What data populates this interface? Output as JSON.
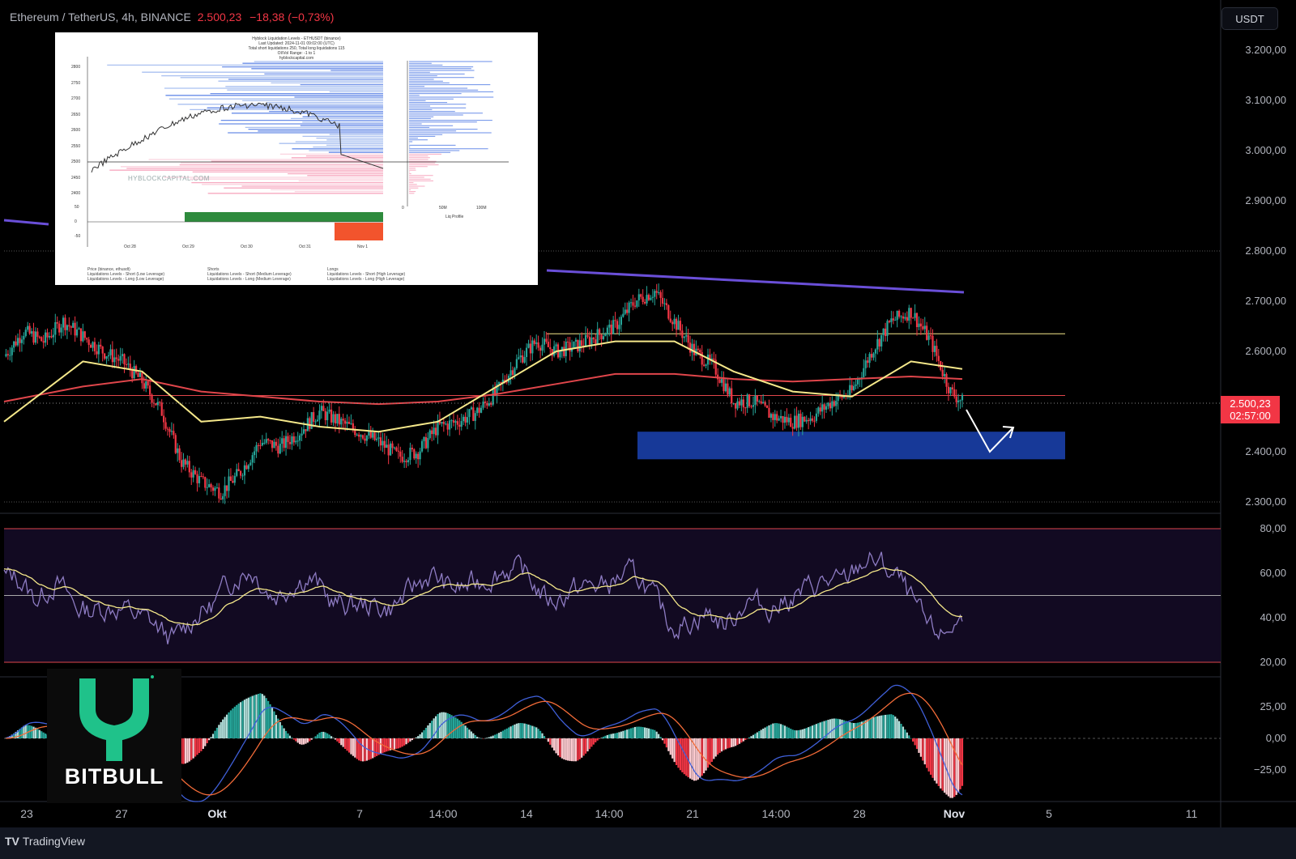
{
  "header": {
    "symbol_label": "Ethereum / TetherUS, 4h, BINANCE",
    "price": "2.500,23",
    "change": "−18,38 (−0,73%)"
  },
  "currency_button": "USDT",
  "price_axis": [
    "3.200,00",
    "3.100,00",
    "3.000,00",
    "2.900,00",
    "2.800,00",
    "2.700,00",
    "2.600,00",
    "2.400,00",
    "2.300,00"
  ],
  "current_price_tag": {
    "price": "2.500,23",
    "countdown": "02:57:00"
  },
  "rsi_axis": [
    "80,00",
    "60,00",
    "40,00",
    "20,00"
  ],
  "macd_axis": [
    "25,00",
    "0,00",
    "−25,00"
  ],
  "time_axis": [
    "23",
    "27",
    "Okt",
    "7",
    "14:00",
    "14",
    "14:00",
    "21",
    "14:00",
    "28",
    "Nov",
    "5",
    "11"
  ],
  "footer": {
    "brand": "TradingView"
  },
  "watermark_logo": {
    "text": "BITBULL"
  },
  "inset": {
    "title_lines": [
      "Hyblock Liquidation Levels - ETHUSDT (binance)",
      "Last Updated: 2024-11-01 09:02:00 (UTC)",
      "Total short liquidations 250, Total long liquidations 115",
      "OI/Vol Range: -1 to 1",
      "hyblockcapital.com"
    ],
    "watermark": "HYBLOCKCAPITAL.COM",
    "y_ticks": [
      "2800",
      "2750",
      "2700",
      "2650",
      "2600",
      "2550",
      "2500",
      "2450",
      "2400"
    ],
    "x_ticks": [
      "Oct 28",
      "Oct 29",
      "Oct 30",
      "Oct 31",
      "Nov 1"
    ],
    "liq_profile_label": "Liq Profile",
    "liq_ticks": [
      "0",
      "50M",
      "100M"
    ],
    "cum_ticks": [
      "50",
      "0",
      "-50"
    ],
    "legend": [
      "Price (binance, ethusdt)",
      "Liquidations Levels - Short (Low Leverage)",
      "Liquidations Levels - Long (Low Leverage)",
      "Shorts",
      "Liquidations Levels - Short (Medium Leverage)",
      "Liquidations Levels - Long (Medium Leverage)",
      "Longs",
      "Liquidations Levels - Short (High Leverage)",
      "Liquidations Levels - Long (High Leverage)"
    ]
  },
  "colors": {
    "up": "#26a69a",
    "down": "#f23645",
    "ma_fast": "#f5e88a",
    "ma_slow": "#e0464b",
    "trend": "#6a4fd8",
    "zone": "#1a3fa8",
    "rsi": "#8e7cc3",
    "rsi_ma": "#f5e88a",
    "macd": "#3f5fd8",
    "signal": "#f26b38"
  },
  "chart_data": {
    "type": "candlestick",
    "title": "Ethereum / TetherUS, 4h, BINANCE",
    "ylim": [
      2280,
      3250
    ],
    "y_ticks": [
      2300,
      2400,
      2500,
      2600,
      2700,
      2800,
      2900,
      3000,
      3100,
      3200
    ],
    "x_ticks": [
      "23",
      "27",
      "Okt",
      "7",
      "14:00",
      "14",
      "14:00",
      "21",
      "14:00",
      "28",
      "Nov",
      "5",
      "11"
    ],
    "close_path": [
      [
        0,
        2590
      ],
      [
        10,
        2640
      ],
      [
        20,
        2620
      ],
      [
        30,
        2660
      ],
      [
        40,
        2630
      ],
      [
        50,
        2600
      ],
      [
        60,
        2580
      ],
      [
        70,
        2540
      ],
      [
        80,
        2480
      ],
      [
        90,
        2380
      ],
      [
        100,
        2340
      ],
      [
        110,
        2320
      ],
      [
        120,
        2360
      ],
      [
        130,
        2420
      ],
      [
        140,
        2410
      ],
      [
        150,
        2440
      ],
      [
        160,
        2480
      ],
      [
        170,
        2460
      ],
      [
        180,
        2440
      ],
      [
        190,
        2420
      ],
      [
        200,
        2390
      ],
      [
        210,
        2400
      ],
      [
        220,
        2450
      ],
      [
        230,
        2460
      ],
      [
        240,
        2480
      ],
      [
        250,
        2520
      ],
      [
        260,
        2580
      ],
      [
        270,
        2620
      ],
      [
        280,
        2600
      ],
      [
        290,
        2610
      ],
      [
        300,
        2630
      ],
      [
        310,
        2650
      ],
      [
        320,
        2700
      ],
      [
        330,
        2720
      ],
      [
        340,
        2660
      ],
      [
        350,
        2600
      ],
      [
        360,
        2570
      ],
      [
        370,
        2500
      ],
      [
        380,
        2500
      ],
      [
        390,
        2470
      ],
      [
        400,
        2460
      ],
      [
        410,
        2470
      ],
      [
        420,
        2500
      ],
      [
        430,
        2520
      ],
      [
        440,
        2600
      ],
      [
        450,
        2660
      ],
      [
        460,
        2680
      ],
      [
        470,
        2620
      ],
      [
        480,
        2520
      ],
      [
        486,
        2500
      ]
    ],
    "ma_fast": [
      [
        0,
        2460
      ],
      [
        40,
        2580
      ],
      [
        70,
        2560
      ],
      [
        100,
        2460
      ],
      [
        130,
        2470
      ],
      [
        160,
        2450
      ],
      [
        190,
        2440
      ],
      [
        220,
        2460
      ],
      [
        250,
        2530
      ],
      [
        280,
        2600
      ],
      [
        310,
        2620
      ],
      [
        340,
        2620
      ],
      [
        370,
        2560
      ],
      [
        400,
        2520
      ],
      [
        430,
        2510
      ],
      [
        460,
        2580
      ],
      [
        486,
        2565
      ]
    ],
    "ma_slow": [
      [
        0,
        2500
      ],
      [
        40,
        2530
      ],
      [
        70,
        2545
      ],
      [
        100,
        2520
      ],
      [
        130,
        2510
      ],
      [
        160,
        2500
      ],
      [
        190,
        2495
      ],
      [
        220,
        2500
      ],
      [
        250,
        2515
      ],
      [
        280,
        2535
      ],
      [
        310,
        2555
      ],
      [
        340,
        2555
      ],
      [
        370,
        2545
      ],
      [
        400,
        2540
      ],
      [
        430,
        2545
      ],
      [
        460,
        2550
      ],
      [
        486,
        2545
      ]
    ],
    "horizontal_levels": [
      2635,
      2512,
      2500.23
    ],
    "support_zone": [
      2385,
      2440
    ],
    "rsi": {
      "ylim": [
        15,
        85
      ],
      "levels": [
        80,
        50,
        20
      ],
      "last": 35
    },
    "macd": {
      "ylim": [
        -40,
        40
      ],
      "levels": [
        25,
        0,
        -25
      ]
    }
  }
}
